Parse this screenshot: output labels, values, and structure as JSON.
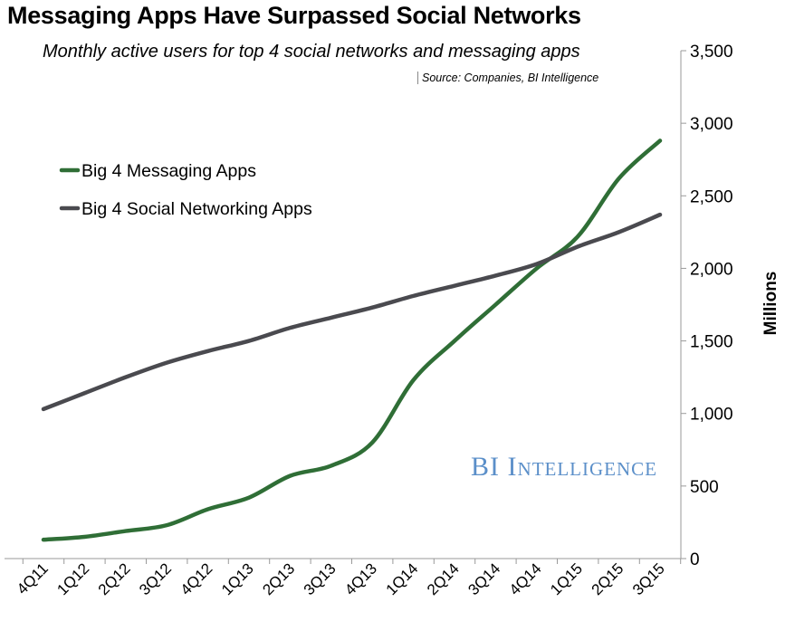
{
  "chart_data": {
    "type": "line",
    "title": "Messaging Apps Have Surpassed Social Networks",
    "subtitle": "Monthly active users for top 4 social networks and messaging apps",
    "source": "Source: Companies, BI Intelligence",
    "watermark": "BI Intelligence",
    "ylabel": "Millions",
    "xlabel": "",
    "ylim": [
      0,
      3500
    ],
    "y_ticks": [
      0,
      500,
      1000,
      1500,
      2000,
      2500,
      3000,
      3500
    ],
    "y_tick_labels": [
      "0",
      "500",
      "1,000",
      "1,500",
      "2,000",
      "2,500",
      "3,000",
      "3,500"
    ],
    "y_axis_side": "right",
    "categories": [
      "4Q11",
      "1Q12",
      "2Q12",
      "3Q12",
      "4Q12",
      "1Q13",
      "2Q13",
      "3Q13",
      "4Q13",
      "1Q14",
      "2Q14",
      "3Q14",
      "4Q14",
      "1Q15",
      "2Q15",
      "3Q15"
    ],
    "legend_position": "top-left",
    "grid": false,
    "series": [
      {
        "name": "Big 4 Messaging Apps",
        "color": "#2f6e36",
        "values": [
          130,
          150,
          190,
          230,
          340,
          420,
          570,
          640,
          800,
          1230,
          1500,
          1750,
          2000,
          2220,
          2620,
          2880
        ]
      },
      {
        "name": "Big 4 Social Networking Apps",
        "color": "#4a4a4f",
        "values": [
          1030,
          1140,
          1250,
          1350,
          1430,
          1500,
          1590,
          1660,
          1730,
          1810,
          1880,
          1950,
          2030,
          2150,
          2250,
          2370
        ]
      }
    ]
  }
}
